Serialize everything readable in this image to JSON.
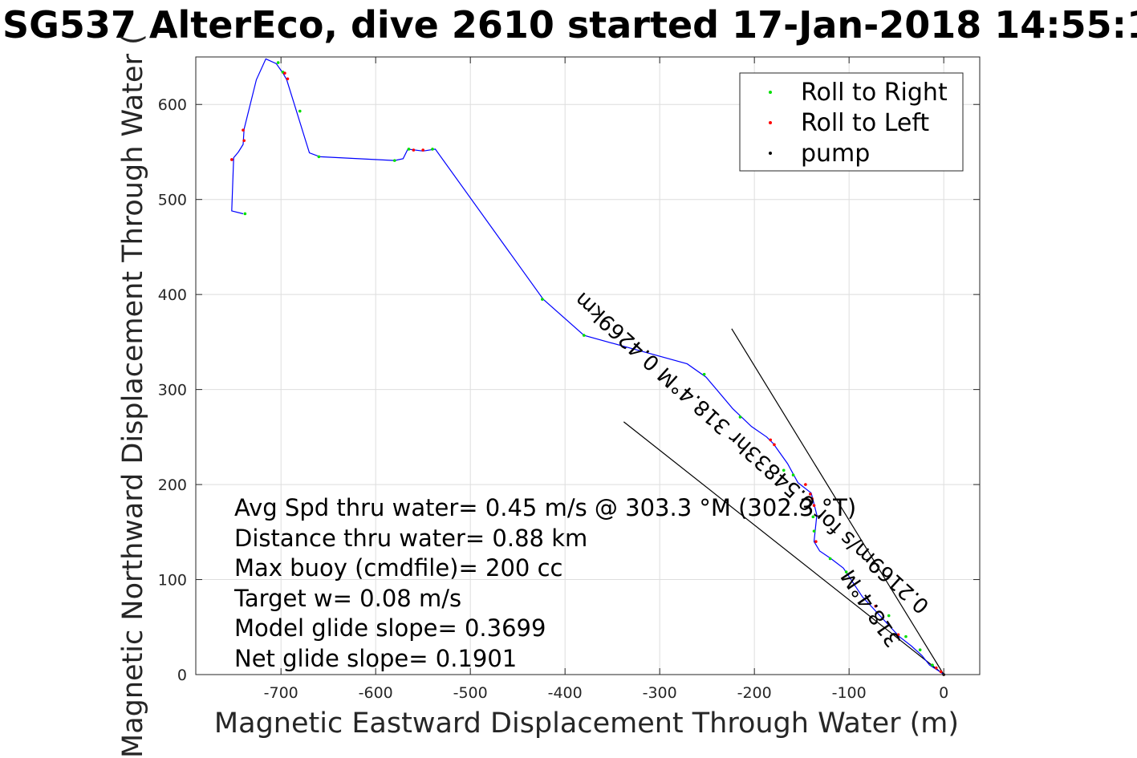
{
  "chart_data": {
    "type": "line",
    "title": "SG537 AlterEco, dive 2610 started 17-Jan-2018 14:55:1",
    "xlabel": "Magnetic Eastward Displacement Through Water (m)",
    "ylabel": "Magnetic Northward Displacement Through Water (",
    "xlim": [
      -790,
      38
    ],
    "ylim": [
      0,
      650
    ],
    "xticks": [
      -700,
      -600,
      -500,
      -400,
      -300,
      -200,
      -100,
      0
    ],
    "yticks": [
      0,
      100,
      200,
      300,
      400,
      500,
      600
    ],
    "xtick_labels": [
      "-700",
      "-600",
      "-500",
      "-400",
      "-300",
      "-200",
      "-100",
      "0"
    ],
    "ytick_labels": [
      "0",
      "100",
      "200",
      "300",
      "400",
      "500",
      "600"
    ],
    "grid": true,
    "legend_position": "top-right",
    "legend": [
      "Roll to Right",
      "Roll to Left",
      "pump"
    ],
    "colors": {
      "track": "#0000ff",
      "roll_right": "#00e000",
      "roll_left": "#ff0000",
      "pump": "#000000",
      "guide": "#000000"
    },
    "track": {
      "x": [
        -740,
        -752,
        -750,
        -745,
        -740,
        -739,
        -726,
        -716,
        -705,
        -698,
        -694,
        -684,
        -670,
        -659,
        -580,
        -571,
        -566,
        -550,
        -537,
        -423,
        -380,
        -271,
        -251,
        -223,
        -203,
        -187,
        -180,
        -165,
        -154,
        -140,
        -134,
        -137,
        -131,
        -119,
        -106,
        -86,
        -47,
        -34,
        -23,
        -15,
        -4,
        0
      ],
      "y": [
        485,
        488,
        544,
        550,
        558,
        574,
        626,
        648,
        643,
        633,
        626,
        594,
        549,
        545,
        541,
        543,
        553,
        551,
        553,
        395,
        357,
        327,
        313,
        280,
        261,
        250,
        243,
        222,
        202,
        191,
        168,
        140,
        130,
        122,
        112,
        82,
        40,
        30,
        20,
        10,
        3,
        0
      ]
    },
    "roll_right": {
      "x": [
        -738,
        -703,
        -698,
        -680,
        -660,
        -580,
        -565,
        -540,
        -424,
        -380,
        -253,
        -215,
        -169,
        -159,
        -138,
        -137,
        -120,
        -103,
        -58,
        -40,
        -25,
        -12
      ],
      "y": [
        485,
        644,
        634,
        593,
        545,
        541,
        553,
        553,
        395,
        357,
        316,
        271,
        215,
        210,
        166,
        151,
        122,
        108,
        62,
        40,
        26,
        10
      ]
    },
    "roll_left": {
      "x": [
        -752,
        -739,
        -693,
        -696,
        -740,
        -560,
        -550,
        -183,
        -179,
        -146,
        -141,
        -139,
        -137,
        -135,
        -72,
        -48,
        -8,
        -3,
        0
      ],
      "y": [
        542,
        562,
        627,
        633,
        573,
        552,
        552,
        247,
        242,
        200,
        190,
        185,
        178,
        140,
        72,
        42,
        7,
        3,
        0
      ]
    },
    "pump": {
      "x": [
        0
      ],
      "y": [
        0
      ]
    },
    "guide_lines": [
      {
        "x": [
          -224,
          0
        ],
        "y": [
          364,
          0
        ]
      },
      {
        "x": [
          -338,
          0
        ],
        "y": [
          266,
          0
        ]
      }
    ],
    "annotations": [
      "Avg Spd thru water=  0.45 m/s @ 303.3 °M (302.3 °T)",
      "Distance thru water=  0.88 km",
      "Max buoy (cmdfile)= 200 cc",
      "Target w= 0.08 m/s",
      "Model glide slope= 0.3699",
      "Net glide slope= 0.1901"
    ],
    "rotated_labels": [
      "0.2169m/s for 0.54833hr 318.4°M 0.4269km",
      "318.4°M"
    ]
  }
}
